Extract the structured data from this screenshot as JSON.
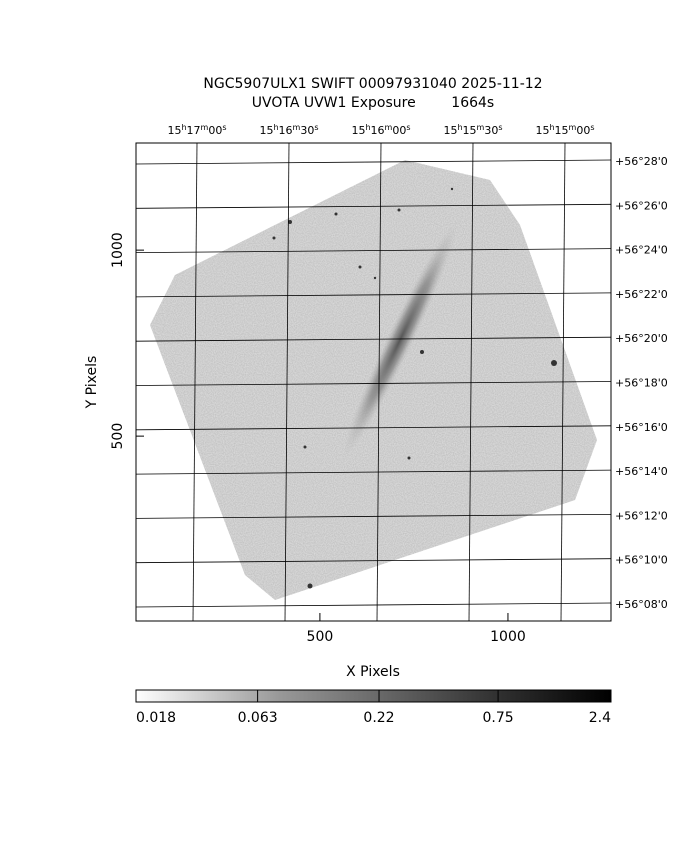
{
  "chart_data": {
    "type": "image",
    "title": "NGC5907ULX1 SWIFT 00097931040 2025-11-12",
    "subtitle": "UVOTA UVW1 Exposure        1664s",
    "x_label": "X Pixels",
    "y_label": "Y Pixels",
    "xlim": [
      11,
      1274
    ],
    "ylim": [
      3,
      1288
    ],
    "xticks": [
      500,
      1000
    ],
    "yticks": [
      500,
      1000
    ],
    "top_axis_labels": [
      "15h17m00s",
      "15h16m30s",
      "15h16m00s",
      "15h15m30s",
      "15h15m00s"
    ],
    "right_axis_labels": [
      "+56°28'0",
      "+56°26'0",
      "+56°24'0",
      "+56°22'0",
      "+56°20'0",
      "+56°18'0",
      "+56°16'0",
      "+56°14'0",
      "+56°12'0",
      "+56°10'0",
      "+56°08'0"
    ],
    "colorbar": {
      "ticks": [
        0.018,
        0.063,
        0.22,
        0.75,
        2.4
      ],
      "log": true
    }
  }
}
